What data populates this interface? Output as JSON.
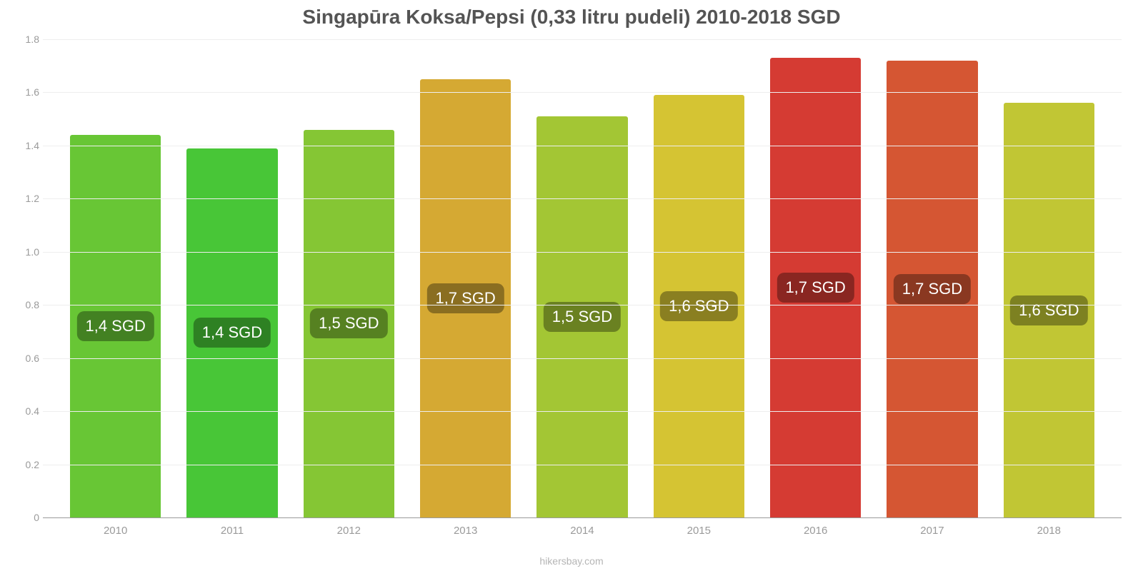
{
  "chart": {
    "type": "bar",
    "title": "Singapūra Koksa/Pepsi (0,33 litru pudeli) 2010-2018 SGD",
    "title_fontsize": 28,
    "title_color": "#545454",
    "background_color": "#ffffff",
    "grid_color": "#eeeeee",
    "axis_color": "#9a9a9a",
    "ylim": [
      0,
      1.8
    ],
    "ytick_step": 0.2,
    "yticks": [
      "0",
      "0.2",
      "0.4",
      "0.6",
      "0.8",
      "1.0",
      "1.2",
      "1.4",
      "1.6",
      "1.8"
    ],
    "categories": [
      "2010",
      "2011",
      "2012",
      "2013",
      "2014",
      "2015",
      "2016",
      "2017",
      "2018"
    ],
    "values": [
      1.44,
      1.39,
      1.46,
      1.65,
      1.51,
      1.59,
      1.73,
      1.72,
      1.56
    ],
    "value_labels": [
      "1,4 SGD",
      "1,4 SGD",
      "1,5 SGD",
      "1,7 SGD",
      "1,5 SGD",
      "1,6 SGD",
      "1,7 SGD",
      "1,7 SGD",
      "1,6 SGD"
    ],
    "bar_colors": [
      "#68c635",
      "#48c637",
      "#85c634",
      "#d5a933",
      "#a3c634",
      "#d5c433",
      "#d53b33",
      "#d55633",
      "#c1c634"
    ],
    "bar_width": 0.78,
    "label_bg_color": "rgba(0,0,0,0.35)",
    "label_text_color": "#ffffff",
    "label_fontsize": 22,
    "tick_fontsize": 15,
    "source": "hikersbay.com",
    "source_color": "#b5b5b5"
  }
}
